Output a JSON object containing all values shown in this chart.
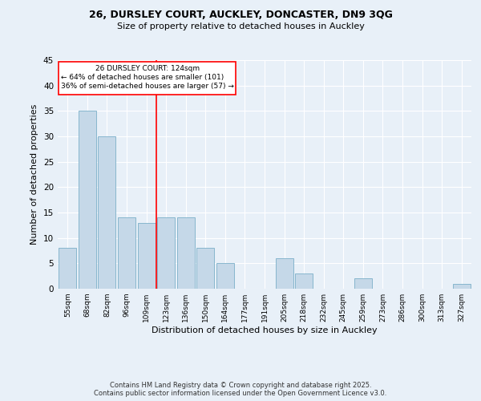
{
  "title1": "26, DURSLEY COURT, AUCKLEY, DONCASTER, DN9 3QG",
  "title2": "Size of property relative to detached houses in Auckley",
  "xlabel": "Distribution of detached houses by size in Auckley",
  "ylabel": "Number of detached properties",
  "categories": [
    "55sqm",
    "68sqm",
    "82sqm",
    "96sqm",
    "109sqm",
    "123sqm",
    "136sqm",
    "150sqm",
    "164sqm",
    "177sqm",
    "191sqm",
    "205sqm",
    "218sqm",
    "232sqm",
    "245sqm",
    "259sqm",
    "273sqm",
    "286sqm",
    "300sqm",
    "313sqm",
    "327sqm"
  ],
  "values": [
    8,
    35,
    30,
    14,
    13,
    14,
    14,
    8,
    5,
    0,
    0,
    6,
    3,
    0,
    0,
    2,
    0,
    0,
    0,
    0,
    1
  ],
  "bar_color": "#c5d8e8",
  "bar_edgecolor": "#7aafc8",
  "highlight_index": 5,
  "ylim": [
    0,
    45
  ],
  "yticks": [
    0,
    5,
    10,
    15,
    20,
    25,
    30,
    35,
    40,
    45
  ],
  "annotation_title": "26 DURSLEY COURT: 124sqm",
  "annotation_line1": "← 64% of detached houses are smaller (101)",
  "annotation_line2": "36% of semi-detached houses are larger (57) →",
  "footer1": "Contains HM Land Registry data © Crown copyright and database right 2025.",
  "footer2": "Contains public sector information licensed under the Open Government Licence v3.0.",
  "bg_color": "#e8f0f8"
}
